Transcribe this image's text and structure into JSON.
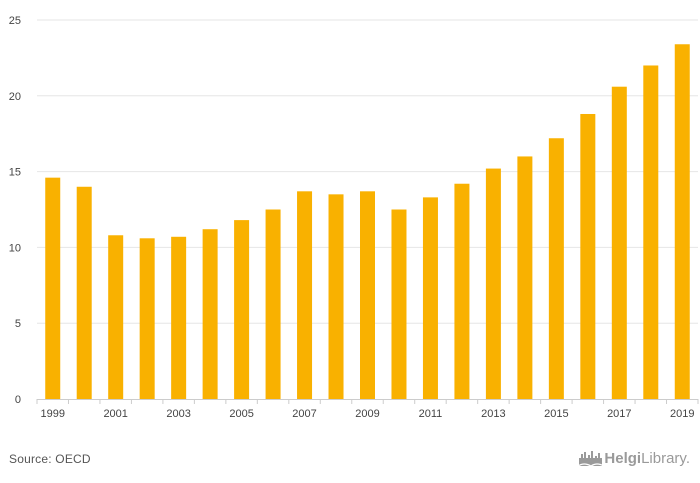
{
  "chart_data": {
    "type": "bar",
    "x": [
      1999,
      2000,
      2001,
      2002,
      2003,
      2004,
      2005,
      2006,
      2007,
      2008,
      2009,
      2010,
      2011,
      2012,
      2013,
      2014,
      2015,
      2016,
      2017,
      2018,
      2019
    ],
    "x_tick_labels": [
      "1999",
      "2001",
      "2003",
      "2005",
      "2007",
      "2009",
      "2011",
      "2013",
      "2015",
      "2017",
      "2019"
    ],
    "values": [
      14.6,
      14.0,
      10.8,
      10.6,
      10.7,
      11.2,
      11.8,
      12.5,
      13.7,
      13.5,
      13.7,
      12.5,
      13.3,
      14.2,
      15.2,
      16.0,
      17.2,
      18.8,
      20.6,
      22.0,
      23.4
    ],
    "ylim": [
      0,
      25
    ],
    "y_ticks": [
      0,
      5,
      10,
      15,
      20,
      25
    ],
    "grid": true,
    "bar_color": "#F9B100",
    "grid_color": "#e6e6e6"
  },
  "footer": {
    "source": "Source: OECD",
    "logo_part1": "Helgi",
    "logo_part2": "Library",
    "logo_suffix": "."
  },
  "icons": {
    "logo": "skyline-icon"
  }
}
